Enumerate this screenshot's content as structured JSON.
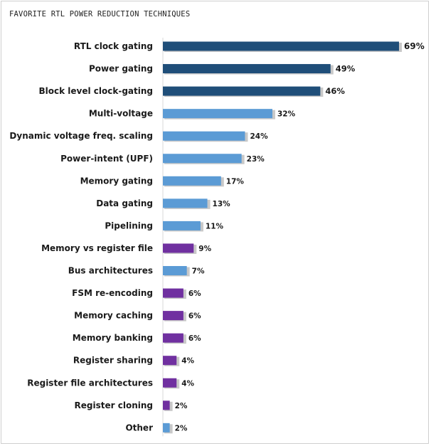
{
  "chart_data": {
    "type": "bar",
    "orientation": "horizontal",
    "title": "FAVORITE RTL POWER REDUCTION TECHNIQUES",
    "value_suffix": "%",
    "xlim": [
      0,
      69
    ],
    "grid": false,
    "legend": "none",
    "colors": {
      "dark_blue": "#1f4e79",
      "light_blue": "#5b9bd5",
      "purple": "#7030a0",
      "shadow": "#c8c8c8"
    },
    "categories": [
      "RTL clock gating",
      "Power gating",
      "Block level clock-gating",
      "Multi-voltage",
      "Dynamic voltage freq. scaling",
      "Power-intent (UPF)",
      "Memory gating",
      "Data gating",
      "Pipelining",
      "Memory vs register file",
      "Bus architectures",
      "FSM re-encoding",
      "Memory caching",
      "Memory banking",
      "Register sharing",
      "Register file architectures",
      "Register cloning",
      "Other"
    ],
    "values": [
      69,
      49,
      46,
      32,
      24,
      23,
      17,
      13,
      11,
      9,
      7,
      6,
      6,
      6,
      4,
      4,
      2,
      2
    ],
    "bar_colors": [
      "dark_blue",
      "dark_blue",
      "dark_blue",
      "light_blue",
      "light_blue",
      "light_blue",
      "light_blue",
      "light_blue",
      "light_blue",
      "purple",
      "light_blue",
      "purple",
      "purple",
      "purple",
      "purple",
      "purple",
      "purple",
      "light_blue"
    ]
  }
}
